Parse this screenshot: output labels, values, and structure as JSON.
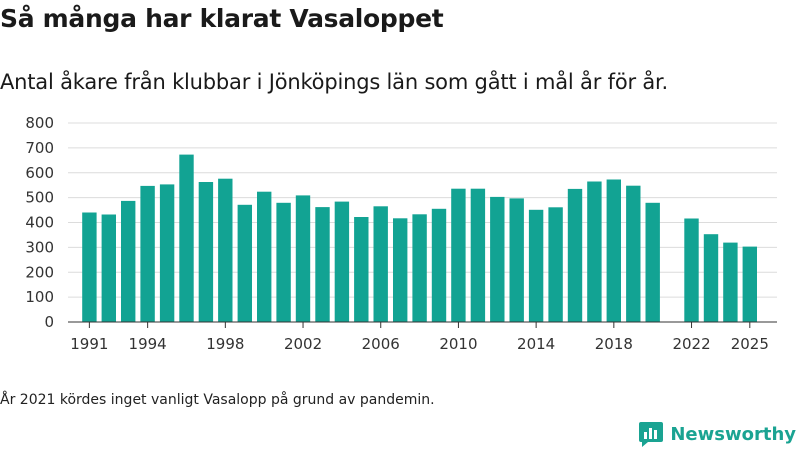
{
  "chart_data": {
    "type": "bar",
    "title": "Så många har klarat Vasaloppet",
    "subtitle": "Antal åkare från klubbar i Jönköpings län som gått i mål år för år.",
    "x": [
      1991,
      1992,
      1993,
      1994,
      1995,
      1996,
      1997,
      1998,
      1999,
      2000,
      2001,
      2002,
      2003,
      2004,
      2005,
      2006,
      2007,
      2008,
      2009,
      2010,
      2011,
      2012,
      2013,
      2014,
      2015,
      2016,
      2017,
      2018,
      2019,
      2020,
      2022,
      2023,
      2024,
      2025
    ],
    "values": [
      440,
      432,
      487,
      547,
      553,
      673,
      563,
      576,
      471,
      524,
      479,
      509,
      462,
      484,
      422,
      465,
      417,
      433,
      455,
      536,
      536,
      503,
      497,
      451,
      461,
      535,
      565,
      573,
      548,
      479,
      416,
      353,
      319,
      303
    ],
    "x_ticks": [
      "1991",
      "1994",
      "1998",
      "2002",
      "2006",
      "2010",
      "2014",
      "2018",
      "2022",
      "2025"
    ],
    "y_ticks": [
      "0",
      "100",
      "200",
      "300",
      "400",
      "500",
      "600",
      "700",
      "800"
    ],
    "ylim": [
      0,
      800
    ],
    "xlim": [
      1989.9,
      2026.4
    ],
    "grid": true,
    "bar_color": "#12a393",
    "xlabel": "",
    "ylabel": ""
  },
  "note": "År 2021 kördes inget vanligt Vasalopp på grund av pandemin.",
  "brand": {
    "name": "Newsworthy",
    "icon": "newsworthy-logo-icon",
    "color": "#1aa392"
  }
}
